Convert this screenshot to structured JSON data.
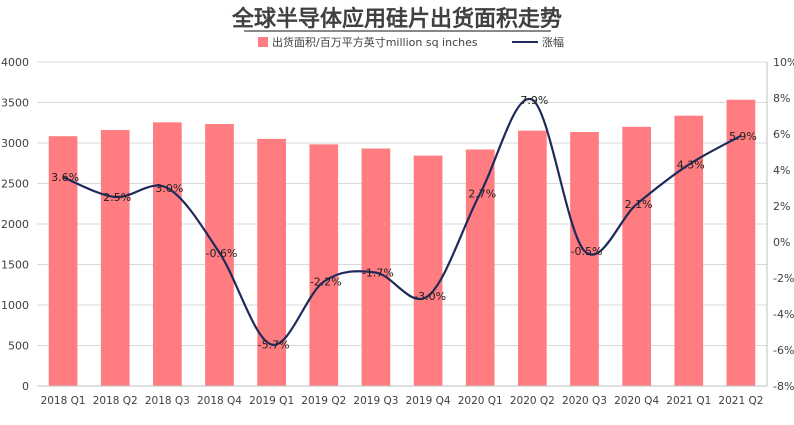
{
  "chart_data": {
    "type": "bar",
    "title": "全球半导体应用硅片出货面积走势",
    "categories": [
      "2018 Q1",
      "2018 Q2",
      "2018 Q3",
      "2018 Q4",
      "2019 Q1",
      "2019 Q2",
      "2019 Q3",
      "2019 Q4",
      "2020 Q1",
      "2020 Q2",
      "2020 Q3",
      "2020 Q4",
      "2021 Q1",
      "2021 Q2"
    ],
    "series": [
      {
        "name": "出货面积/百万平方英寸million sq inches",
        "type": "bar",
        "axis": "left",
        "color": "#ff7c80",
        "values": [
          3084,
          3160,
          3255,
          3234,
          3051,
          2983,
          2932,
          2844,
          2920,
          3152,
          3135,
          3200,
          3337,
          3534
        ]
      },
      {
        "name": "涨幅",
        "type": "line",
        "axis": "right",
        "color": "#1f2a5a",
        "values": [
          3.6,
          2.5,
          3.0,
          -0.6,
          -5.7,
          -2.2,
          -1.7,
          -3.0,
          2.7,
          7.9,
          -0.5,
          2.1,
          4.3,
          5.9
        ],
        "labels": [
          "3.6%",
          "2.5%",
          "3.0%",
          "-0.6%",
          "-5.7%",
          "-2.2%",
          "-1.7%",
          "-3.0%",
          "2.7%",
          "7.9%",
          "-0.5%",
          "2.1%",
          "4.3%",
          "5.9%"
        ]
      }
    ],
    "y_left": {
      "min": 0,
      "max": 4000,
      "step": 500,
      "ticks": [
        "0",
        "500",
        "1000",
        "1500",
        "2000",
        "2500",
        "3000",
        "3500",
        "4000"
      ]
    },
    "y_right": {
      "min": -8,
      "max": 10,
      "step": 2,
      "ticks": [
        "-8%",
        "-6%",
        "-4%",
        "-2%",
        "0%",
        "2%",
        "4%",
        "6%",
        "8%",
        "10%"
      ]
    },
    "grid": true,
    "legend": "top-center"
  }
}
